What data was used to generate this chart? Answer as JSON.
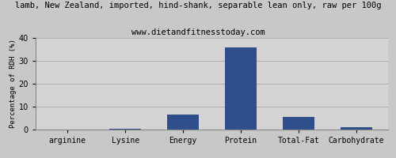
{
  "title": "lamb, New Zealand, imported, hind-shank, separable lean only, raw per 100g",
  "subtitle": "www.dietandfitnesstoday.com",
  "ylabel": "Percentage of RDH (%)",
  "categories": [
    "arginine",
    "Lysine",
    "Energy",
    "Protein",
    "Total-Fat",
    "Carbohydrate"
  ],
  "values": [
    0.1,
    0.4,
    6.5,
    36.0,
    5.5,
    1.2
  ],
  "bar_color": "#2e4f8c",
  "ylim": [
    0,
    40
  ],
  "yticks": [
    0,
    10,
    20,
    30,
    40
  ],
  "background_color": "#c8c8c8",
  "plot_bg_color": "#d4d4d4",
  "title_fontsize": 7.5,
  "subtitle_fontsize": 7.5,
  "ylabel_fontsize": 6.5,
  "tick_fontsize": 7,
  "grid_color": "#b0b0b0"
}
